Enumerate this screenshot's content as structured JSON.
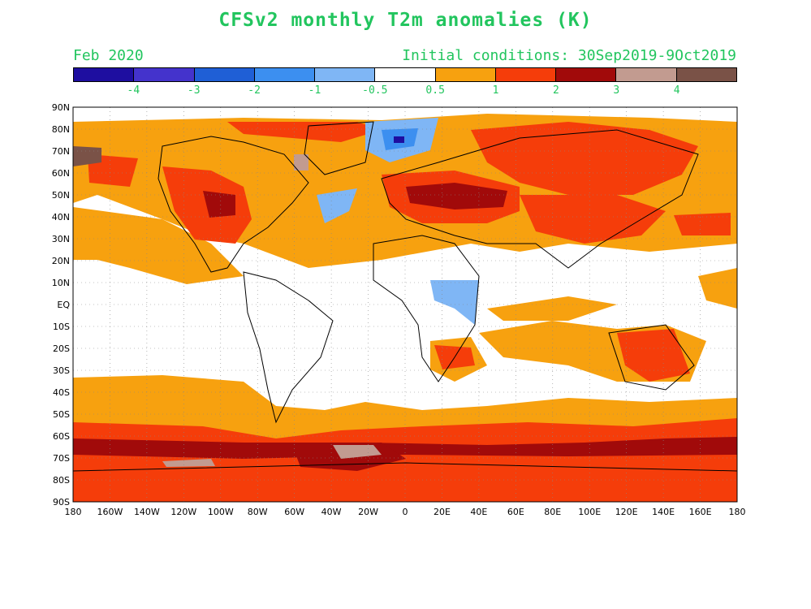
{
  "title": "CFSv2 monthly T2m anomalies (K)",
  "valid_month": "Feb 2020",
  "initial_conditions": "Initial conditions: 30Sep2019-9Oct2019",
  "colorbar": {
    "bins": [
      {
        "label": "",
        "color": "#1e0ea0"
      },
      {
        "label": "-4",
        "color": "#4433cc"
      },
      {
        "label": "-3",
        "color": "#1f5fd6"
      },
      {
        "label": "-2",
        "color": "#3c8ff0"
      },
      {
        "label": "-1",
        "color": "#7fb6f5"
      },
      {
        "label": "-0.5",
        "color": "#ffffff"
      },
      {
        "label": "0.5",
        "color": "#f7a10f"
      },
      {
        "label": "1",
        "color": "#f53d0a"
      },
      {
        "label": "2",
        "color": "#a10a0a"
      },
      {
        "label": "3",
        "color": "#c29b90"
      },
      {
        "label": "4",
        "color": "#7a5247"
      }
    ]
  },
  "lat_labels": [
    "90N",
    "80N",
    "70N",
    "60N",
    "50N",
    "40N",
    "30N",
    "20N",
    "10N",
    "EQ",
    "10S",
    "20S",
    "30S",
    "40S",
    "50S",
    "60S",
    "70S",
    "80S",
    "90S"
  ],
  "lon_labels": [
    "180",
    "160W",
    "140W",
    "120W",
    "100W",
    "80W",
    "60W",
    "40W",
    "20W",
    "0",
    "20E",
    "40E",
    "60E",
    "80E",
    "100E",
    "120E",
    "140E",
    "160E",
    "180"
  ]
}
